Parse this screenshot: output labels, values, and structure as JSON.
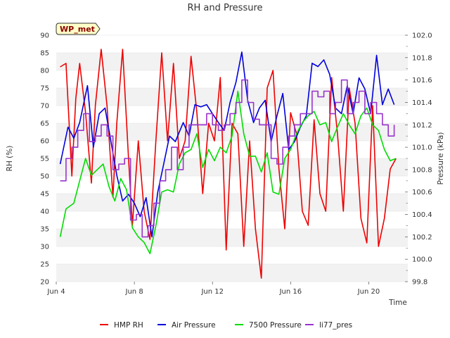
{
  "chart_data": {
    "type": "line",
    "title": "RH and Pressure",
    "badge": "WP_met",
    "xlabel": "Time",
    "ylabel_left": "RH (%)",
    "ylabel_right": "Pressure (kPa)",
    "x_ticks": [
      "Jun 4",
      "Jun 8",
      "Jun 12",
      "Jun 16",
      "Jun 20"
    ],
    "x_tick_days": [
      4,
      8,
      12,
      16,
      20
    ],
    "xlim_days": [
      4,
      22
    ],
    "ylim_left": [
      20,
      90
    ],
    "y_ticks_left": [
      20,
      25,
      30,
      35,
      40,
      45,
      50,
      55,
      60,
      65,
      70,
      75,
      80,
      85,
      90
    ],
    "ylim_right": [
      99.8,
      102.0
    ],
    "y_ticks_right": [
      "99.8",
      "100.0",
      "100.2",
      "100.4",
      "100.6",
      "100.8",
      "101.0",
      "101.2",
      "101.4",
      "101.6",
      "101.8",
      "102.0"
    ],
    "grid": "horizontal bands",
    "legend_position": "bottom",
    "series": [
      {
        "name": "HMP RH",
        "axis": "left",
        "color": "#ee0000",
        "x": [
          4.2,
          4.5,
          4.8,
          5.0,
          5.2,
          5.5,
          5.8,
          6.0,
          6.3,
          6.6,
          6.9,
          7.1,
          7.4,
          7.7,
          7.9,
          8.2,
          8.5,
          8.8,
          9.1,
          9.4,
          9.7,
          10.0,
          10.3,
          10.6,
          10.9,
          11.2,
          11.5,
          11.8,
          12.1,
          12.4,
          12.7,
          13.0,
          13.3,
          13.6,
          13.9,
          14.2,
          14.5,
          14.8,
          15.1,
          15.4,
          15.7,
          16.0,
          16.3,
          16.6,
          16.9,
          17.2,
          17.5,
          17.8,
          18.1,
          18.4,
          18.7,
          19.0,
          19.3,
          19.6,
          19.9,
          20.2,
          20.5,
          20.8,
          21.1,
          21.4
        ],
        "y": [
          81,
          82,
          50,
          72,
          82,
          68,
          48,
          70,
          86,
          70,
          44,
          65,
          86,
          55,
          36,
          60,
          40,
          32,
          60,
          85,
          60,
          82,
          55,
          60,
          84,
          68,
          45,
          65,
          60,
          78,
          29,
          65,
          62,
          30,
          60,
          35,
          21,
          75,
          80,
          52,
          35,
          68,
          62,
          40,
          36,
          66,
          45,
          40,
          78,
          62,
          40,
          75,
          65,
          38,
          31,
          70,
          30,
          38,
          52,
          55
        ]
      },
      {
        "name": "Air Pressure",
        "axis": "right",
        "color": "#0000dd",
        "x": [
          4.2,
          4.6,
          4.9,
          5.2,
          5.6,
          5.9,
          6.2,
          6.5,
          6.8,
          7.1,
          7.4,
          7.7,
          8.0,
          8.3,
          8.6,
          8.9,
          9.2,
          9.5,
          9.8,
          10.1,
          10.5,
          10.8,
          11.1,
          11.4,
          11.7,
          12.0,
          12.3,
          12.6,
          12.9,
          13.2,
          13.5,
          13.8,
          14.1,
          14.4,
          14.7,
          15.0,
          15.3,
          15.6,
          15.9,
          16.2,
          16.5,
          16.8,
          17.1,
          17.4,
          17.7,
          18.0,
          18.3,
          18.6,
          18.9,
          19.2,
          19.5,
          19.8,
          20.1,
          20.4,
          20.7,
          21.0,
          21.3
        ],
        "y": [
          100.85,
          101.18,
          101.08,
          101.22,
          101.55,
          101.0,
          101.3,
          101.35,
          101.05,
          100.75,
          100.52,
          100.58,
          100.5,
          100.38,
          100.55,
          100.2,
          100.6,
          100.85,
          101.1,
          101.05,
          101.22,
          101.1,
          101.38,
          101.36,
          101.38,
          101.3,
          101.22,
          101.15,
          101.4,
          101.58,
          101.85,
          101.42,
          101.22,
          101.35,
          101.42,
          101.05,
          101.28,
          101.48,
          100.98,
          101.05,
          101.18,
          101.28,
          101.75,
          101.72,
          101.78,
          101.65,
          101.35,
          101.3,
          101.55,
          101.3,
          101.62,
          101.52,
          101.3,
          101.82,
          101.38,
          101.52,
          101.38
        ]
      },
      {
        "name": "7500 Pressure",
        "axis": "right",
        "color": "#00dd00",
        "x": [
          4.2,
          4.5,
          4.9,
          5.2,
          5.5,
          5.8,
          6.1,
          6.4,
          6.7,
          7.0,
          7.3,
          7.6,
          7.9,
          8.2,
          8.5,
          8.8,
          9.1,
          9.4,
          9.7,
          10.0,
          10.3,
          10.6,
          10.9,
          11.2,
          11.5,
          11.8,
          12.1,
          12.4,
          12.7,
          13.0,
          13.3,
          13.6,
          13.9,
          14.2,
          14.5,
          14.8,
          15.1,
          15.4,
          15.7,
          16.0,
          16.3,
          16.6,
          16.9,
          17.2,
          17.5,
          17.8,
          18.1,
          18.4,
          18.7,
          19.0,
          19.3,
          19.6,
          19.9,
          20.2,
          20.5,
          20.8,
          21.1,
          21.4
        ],
        "y": [
          100.2,
          100.45,
          100.5,
          100.7,
          100.9,
          100.75,
          100.8,
          100.85,
          100.65,
          100.52,
          100.72,
          100.62,
          100.28,
          100.2,
          100.15,
          100.05,
          100.3,
          100.6,
          100.62,
          100.6,
          100.85,
          100.95,
          100.98,
          101.12,
          100.82,
          100.98,
          100.88,
          101.0,
          100.95,
          101.1,
          101.5,
          101.12,
          100.92,
          100.92,
          100.78,
          100.95,
          100.6,
          100.58,
          100.9,
          100.98,
          101.12,
          101.22,
          101.28,
          101.32,
          101.2,
          101.22,
          101.05,
          101.18,
          101.3,
          101.2,
          101.12,
          101.28,
          101.35,
          101.2,
          101.15,
          100.98,
          100.88,
          100.9
        ]
      },
      {
        "name": "li77_pres",
        "axis": "right",
        "color": "#9933cc",
        "x": [
          4.2,
          4.5,
          4.8,
          5.1,
          5.4,
          5.7,
          6.0,
          6.3,
          6.6,
          6.9,
          7.2,
          7.5,
          7.8,
          8.1,
          8.4,
          8.7,
          9.0,
          9.3,
          9.6,
          9.9,
          10.2,
          10.5,
          10.8,
          11.1,
          11.4,
          11.7,
          12.0,
          12.3,
          12.6,
          12.9,
          13.2,
          13.5,
          13.8,
          14.1,
          14.4,
          14.7,
          15.0,
          15.3,
          15.6,
          15.9,
          16.2,
          16.5,
          16.8,
          17.1,
          17.4,
          17.7,
          18.0,
          18.3,
          18.6,
          18.9,
          19.2,
          19.5,
          19.8,
          20.1,
          20.4,
          20.7,
          21.0,
          21.3
        ],
        "y": [
          100.7,
          100.9,
          101.0,
          101.15,
          101.3,
          101.05,
          101.1,
          101.2,
          101.1,
          100.8,
          100.85,
          100.9,
          100.35,
          100.4,
          100.2,
          100.3,
          100.5,
          100.7,
          100.8,
          101.0,
          100.8,
          101.0,
          101.2,
          101.2,
          101.2,
          101.3,
          101.2,
          101.15,
          101.2,
          101.3,
          101.4,
          101.6,
          101.4,
          101.25,
          101.2,
          101.2,
          100.9,
          100.85,
          101.0,
          101.1,
          101.2,
          101.3,
          101.3,
          101.5,
          101.45,
          101.5,
          101.3,
          101.4,
          101.6,
          101.3,
          101.4,
          101.5,
          101.3,
          101.4,
          101.3,
          101.2,
          101.1,
          101.2
        ]
      }
    ]
  }
}
